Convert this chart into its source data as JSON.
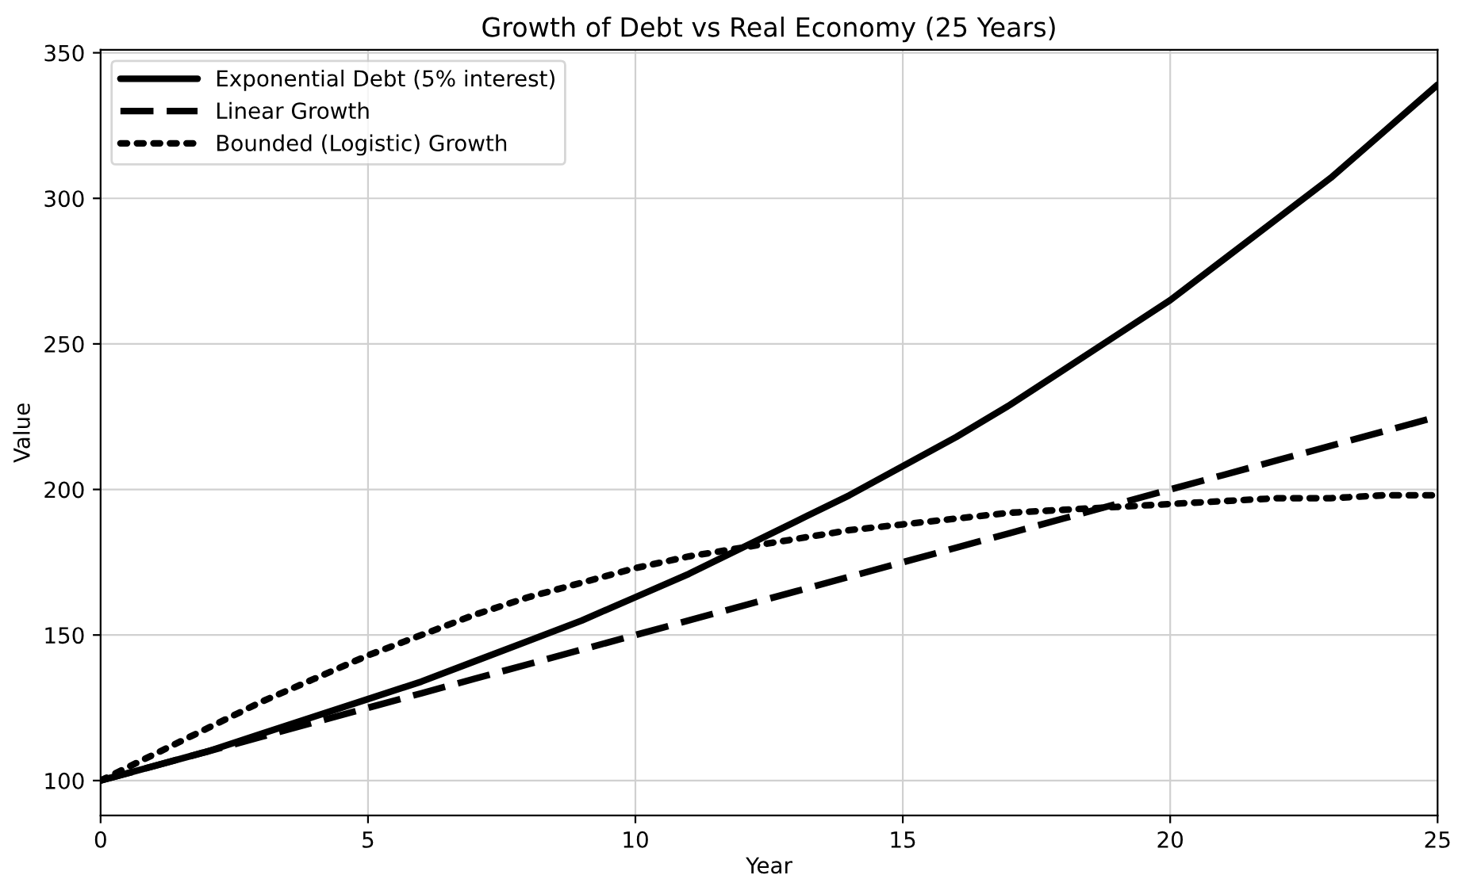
{
  "chart_data": {
    "type": "line",
    "title": "Growth of Debt vs Real Economy (25 Years)",
    "xlabel": "Year",
    "ylabel": "Value",
    "x": [
      0,
      1,
      2,
      3,
      4,
      5,
      6,
      7,
      8,
      9,
      10,
      11,
      12,
      13,
      14,
      15,
      16,
      17,
      18,
      19,
      20,
      21,
      22,
      23,
      24,
      25
    ],
    "series": [
      {
        "name": "Exponential Debt (5% interest)",
        "color": "#000000",
        "line_style": "solid",
        "values": [
          100,
          105,
          110,
          116,
          122,
          128,
          134,
          141,
          148,
          155,
          163,
          171,
          180,
          189,
          198,
          208,
          218,
          229,
          241,
          253,
          265,
          279,
          293,
          307,
          323,
          339
        ]
      },
      {
        "name": "Linear Growth",
        "color": "#000000",
        "line_style": "dashed",
        "values": [
          100,
          105,
          110,
          115,
          120,
          125,
          130,
          135,
          140,
          145,
          150,
          155,
          160,
          165,
          170,
          175,
          180,
          185,
          190,
          195,
          200,
          205,
          210,
          215,
          220,
          225
        ]
      },
      {
        "name": "Bounded (Logistic) Growth",
        "color": "#000000",
        "line_style": "dotted",
        "values": [
          100,
          109,
          118,
          127,
          135,
          143,
          150,
          157,
          163,
          168,
          173,
          177,
          180,
          183,
          186,
          188,
          190,
          192,
          193,
          194,
          195,
          196,
          197,
          197,
          198,
          198
        ]
      }
    ],
    "xlim": [
      0,
      25
    ],
    "xticks": [
      0,
      5,
      10,
      15,
      20,
      25
    ],
    "ylim": [
      88,
      351
    ],
    "yticks": [
      100,
      150,
      200,
      250,
      300,
      350
    ],
    "grid": true,
    "legend": "top left"
  }
}
